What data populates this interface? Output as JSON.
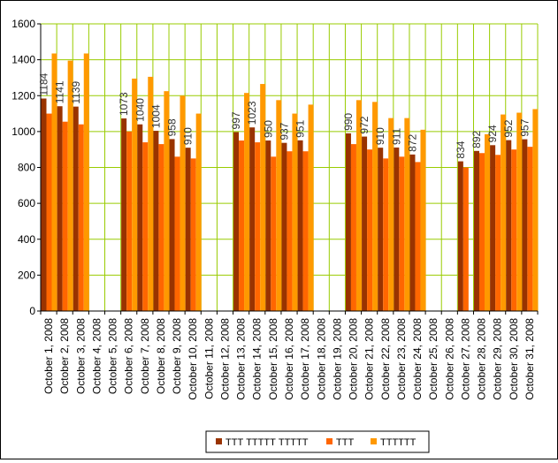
{
  "chart_data": {
    "type": "bar",
    "title": "",
    "xlabel": "",
    "ylabel": "",
    "ylim": [
      0,
      1600
    ],
    "yticks": [
      0,
      200,
      400,
      600,
      800,
      1000,
      1200,
      1400,
      1600
    ],
    "grid": true,
    "legend_position": "bottom",
    "categories": [
      "October 1, 2008",
      "October 2, 2008",
      "October 3, 2008",
      "October 4, 2008",
      "October 5, 2008",
      "October 6, 2008",
      "October 7, 2008",
      "October 8, 2008",
      "October 9, 2008",
      "October 10, 2008",
      "October 11, 2008",
      "October 12, 2008",
      "October 13, 2008",
      "October 14, 2008",
      "October 15, 2008",
      "October 16, 2008",
      "October 17, 2008",
      "October 18, 2008",
      "October 19, 2008",
      "October 20, 2008",
      "October 21, 2008",
      "October 22, 2008",
      "October 23, 2008",
      "October 24, 2008",
      "October 25, 2008",
      "October 26, 2008",
      "October 27, 2008",
      "October 28, 2008",
      "October 29, 2008",
      "October 30, 2008",
      "October 31, 2008"
    ],
    "series": [
      {
        "name": "ТТТ ТТТТТ ТТТТТ",
        "color": "#993300",
        "values": [
          1184,
          1141,
          1139,
          null,
          null,
          1073,
          1040,
          1004,
          958,
          910,
          null,
          null,
          997,
          1023,
          950,
          937,
          951,
          null,
          null,
          990,
          972,
          910,
          911,
          872,
          null,
          null,
          834,
          892,
          924,
          952,
          957
        ],
        "data_labels": true
      },
      {
        "name": "ТТТ",
        "color": "#FF6600",
        "values": [
          1100,
          1055,
          1040,
          null,
          null,
          1000,
          940,
          930,
          860,
          850,
          null,
          null,
          950,
          940,
          860,
          890,
          890,
          null,
          null,
          930,
          900,
          850,
          860,
          830,
          null,
          null,
          800,
          880,
          870,
          900,
          915
        ],
        "data_labels": false
      },
      {
        "name": "ТТТТТТ",
        "color": "#FF9900",
        "values": [
          1435,
          1395,
          1435,
          null,
          null,
          1295,
          1305,
          1225,
          1200,
          1100,
          null,
          null,
          1215,
          1265,
          1175,
          1100,
          1150,
          null,
          null,
          1175,
          1165,
          1075,
          1075,
          1010,
          null,
          null,
          null,
          985,
          1095,
          1105,
          1125
        ],
        "data_labels": false
      }
    ]
  }
}
